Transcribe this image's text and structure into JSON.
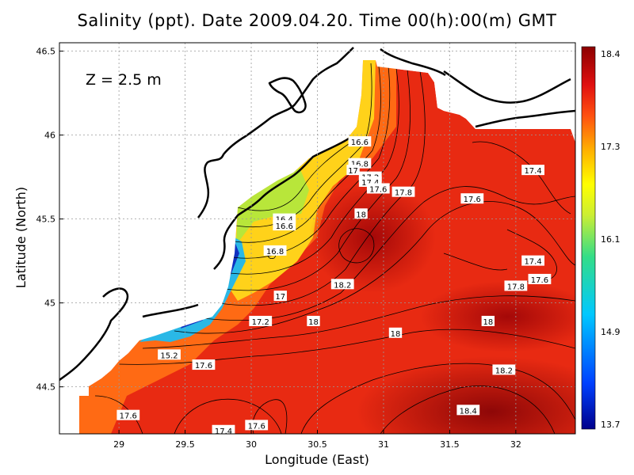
{
  "title": "Salinity (ppt). Date 2009.04.20. Time 00(h):00(m) GMT",
  "depth_label": "Z  =  2.5  m",
  "axes": {
    "xlabel": "Longitude (East)",
    "ylabel": "Latitude (North)",
    "xticks": [
      "29",
      "29.5",
      "30",
      "30.5",
      "31",
      "31.5",
      "32"
    ],
    "yticks": [
      "46.5",
      "46",
      "45.5",
      "45",
      "44.5"
    ],
    "xlim": [
      28.55,
      32.45
    ],
    "ylim": [
      44.22,
      46.55
    ],
    "grid": true
  },
  "colorbar": {
    "ticks": [
      "18.4",
      "17.3",
      "16.1",
      "14.9",
      "13.7"
    ],
    "range": [
      13.7,
      18.4
    ],
    "colors": [
      "#00008b",
      "#0040ff",
      "#00c8ff",
      "#33dd88",
      "#ccee33",
      "#ffff00",
      "#ffb000",
      "#ff5010",
      "#e01010",
      "#8b0000"
    ]
  },
  "chart_data": {
    "type": "heatmap",
    "variable": "Salinity",
    "units": "ppt",
    "depth": "2.5 m",
    "date": "2009.04.20",
    "time": "00(h):00(m) GMT",
    "contour_labels": [
      {
        "text": "16.6",
        "lon": 30.82,
        "lat": 45.96
      },
      {
        "text": "16.8",
        "lon": 30.82,
        "lat": 45.83
      },
      {
        "text": "17",
        "lon": 30.77,
        "lat": 45.79
      },
      {
        "text": "17.2",
        "lon": 30.9,
        "lat": 45.75
      },
      {
        "text": "17.4",
        "lon": 30.9,
        "lat": 45.72
      },
      {
        "text": "17.6",
        "lon": 30.96,
        "lat": 45.68
      },
      {
        "text": "17.8",
        "lon": 31.15,
        "lat": 45.66
      },
      {
        "text": "18",
        "lon": 30.83,
        "lat": 45.53
      },
      {
        "text": "16.4",
        "lon": 30.25,
        "lat": 45.5
      },
      {
        "text": "16.6",
        "lon": 30.25,
        "lat": 45.46
      },
      {
        "text": "16.8",
        "lon": 30.18,
        "lat": 45.31
      },
      {
        "text": "18.2",
        "lon": 30.69,
        "lat": 45.11
      },
      {
        "text": "17",
        "lon": 30.22,
        "lat": 45.04
      },
      {
        "text": "17.2",
        "lon": 30.07,
        "lat": 44.89
      },
      {
        "text": "18",
        "lon": 30.47,
        "lat": 44.89
      },
      {
        "text": "18",
        "lon": 31.09,
        "lat": 44.82
      },
      {
        "text": "18",
        "lon": 31.79,
        "lat": 44.89
      },
      {
        "text": "15.2",
        "lon": 29.38,
        "lat": 44.69
      },
      {
        "text": "17.6",
        "lon": 29.64,
        "lat": 44.63
      },
      {
        "text": "18.2",
        "lon": 31.91,
        "lat": 44.6
      },
      {
        "text": "18.4",
        "lon": 31.64,
        "lat": 44.36
      },
      {
        "text": "17.6",
        "lon": 29.07,
        "lat": 44.33
      },
      {
        "text": "17.6",
        "lon": 30.04,
        "lat": 44.27
      },
      {
        "text": "17.4",
        "lon": 29.79,
        "lat": 44.24
      },
      {
        "text": "17.6",
        "lon": 31.67,
        "lat": 45.62
      },
      {
        "text": "17.4",
        "lon": 32.13,
        "lat": 45.79
      },
      {
        "text": "17.4",
        "lon": 32.13,
        "lat": 45.25
      },
      {
        "text": "17.6",
        "lon": 32.18,
        "lat": 45.14
      },
      {
        "text": "17.8",
        "lon": 32.0,
        "lat": 45.1
      }
    ]
  }
}
